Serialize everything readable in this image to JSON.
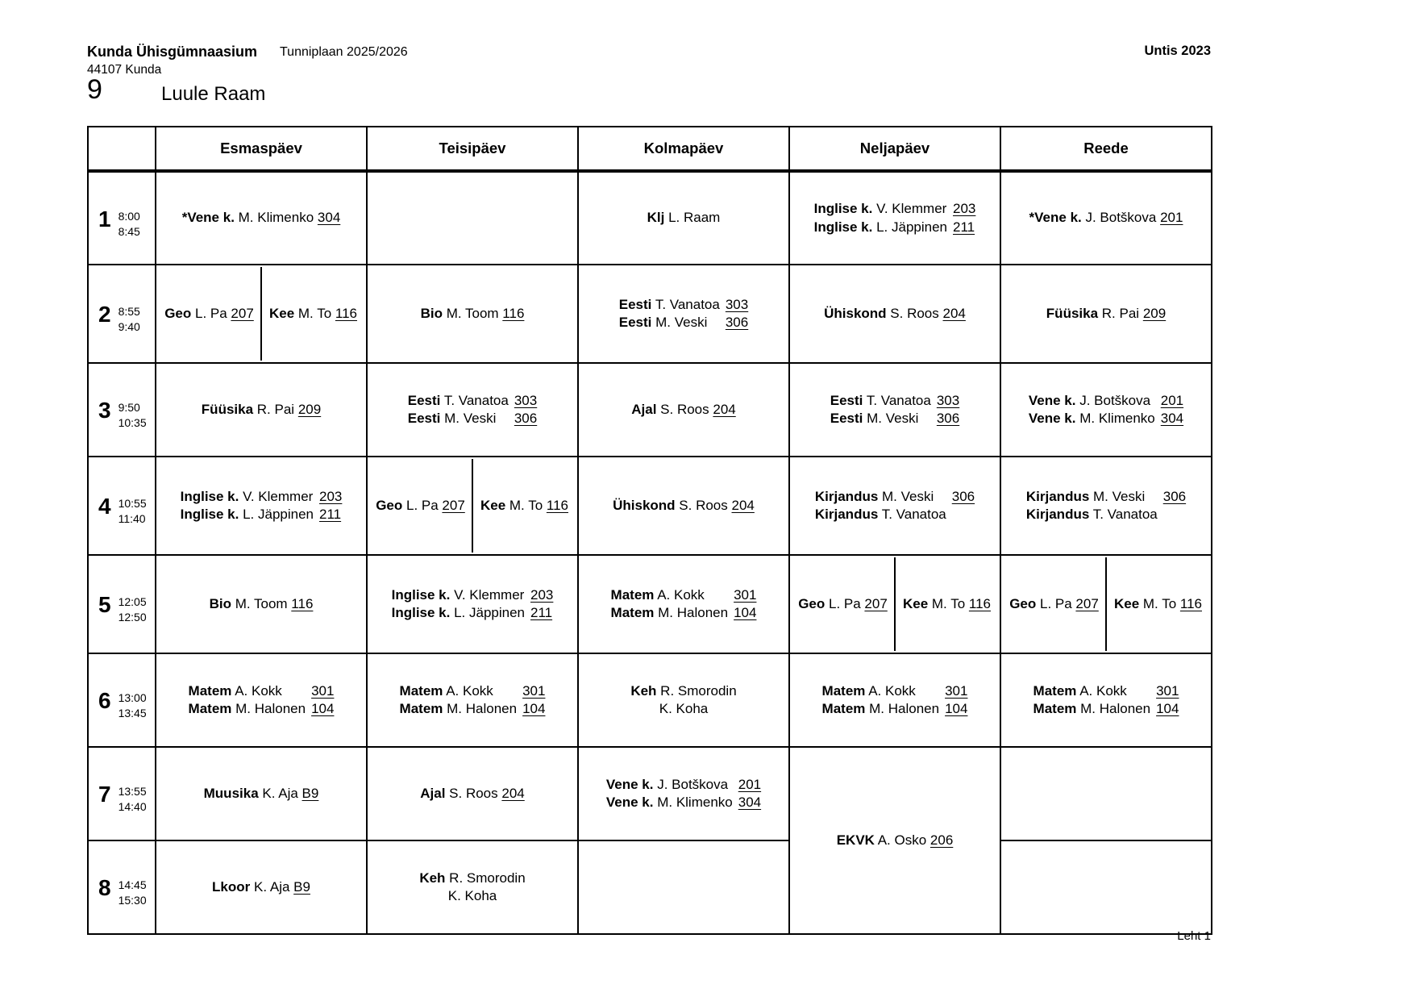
{
  "page": {
    "school": "Kunda Ühisgümnaasium",
    "address": "44107 Kunda",
    "plan_title": "Tunniplaan 2025/2026",
    "app_version": "Untis 2023",
    "class_label": "9",
    "class_name": "Luule Raam",
    "page_footer": "Leht 1"
  },
  "timetable": {
    "days": [
      "Esmaspäev",
      "Teisipäev",
      "Kolmapäev",
      "Neljapäev",
      "Reede"
    ],
    "periods": [
      {
        "num": "1",
        "start": "8:00",
        "end": "8:45"
      },
      {
        "num": "2",
        "start": "8:55",
        "end": "9:40"
      },
      {
        "num": "3",
        "start": "9:50",
        "end": "10:35"
      },
      {
        "num": "4",
        "start": "10:55",
        "end": "11:40"
      },
      {
        "num": "5",
        "start": "12:05",
        "end": "12:50"
      },
      {
        "num": "6",
        "start": "13:00",
        "end": "13:45"
      },
      {
        "num": "7",
        "start": "13:55",
        "end": "14:40"
      },
      {
        "num": "8",
        "start": "14:45",
        "end": "15:30"
      }
    ],
    "rows": [
      [
        {
          "kind": "lessons",
          "lines": [
            [
              "*Vene k.",
              "M. Klimenko",
              "304"
            ]
          ]
        },
        {
          "kind": "empty"
        },
        {
          "kind": "lessons",
          "lines": [
            [
              "Klj",
              "L. Raam",
              ""
            ]
          ]
        },
        {
          "kind": "lessons",
          "lines": [
            [
              "Inglise k.",
              "V. Klemmer",
              "203"
            ],
            [
              "Inglise k.",
              "L. Jäppinen",
              "211"
            ]
          ]
        },
        {
          "kind": "lessons",
          "lines": [
            [
              "*Vene k.",
              "J. Botškova",
              "201"
            ]
          ]
        }
      ],
      [
        {
          "kind": "split",
          "parts": [
            [
              [
                "Geo",
                "L. Pa",
                "207"
              ]
            ],
            [
              [
                "Kee",
                "M. To",
                "116"
              ]
            ]
          ]
        },
        {
          "kind": "lessons",
          "lines": [
            [
              "Bio",
              "M. Toom",
              "116"
            ]
          ]
        },
        {
          "kind": "lessons",
          "lines": [
            [
              "Eesti",
              "T. Vanatoa",
              "303"
            ],
            [
              "Eesti",
              "M. Veski",
              "306"
            ]
          ]
        },
        {
          "kind": "lessons",
          "lines": [
            [
              "Ühiskond",
              "S. Roos",
              "204"
            ]
          ]
        },
        {
          "kind": "lessons",
          "lines": [
            [
              "Füüsika",
              "R. Pai",
              "209"
            ]
          ]
        }
      ],
      [
        {
          "kind": "lessons",
          "lines": [
            [
              "Füüsika",
              "R. Pai",
              "209"
            ]
          ]
        },
        {
          "kind": "lessons",
          "lines": [
            [
              "Eesti",
              "T. Vanatoa",
              "303"
            ],
            [
              "Eesti",
              "M. Veski",
              "306"
            ]
          ]
        },
        {
          "kind": "lessons",
          "lines": [
            [
              "Ajal",
              "S. Roos",
              "204"
            ]
          ]
        },
        {
          "kind": "lessons",
          "lines": [
            [
              "Eesti",
              "T. Vanatoa",
              "303"
            ],
            [
              "Eesti",
              "M. Veski",
              "306"
            ]
          ]
        },
        {
          "kind": "lessons",
          "lines": [
            [
              "Vene k.",
              "J. Botškova",
              "201"
            ],
            [
              "Vene k.",
              "M. Klimenko",
              "304"
            ]
          ]
        }
      ],
      [
        {
          "kind": "lessons",
          "lines": [
            [
              "Inglise k.",
              "V. Klemmer",
              "203"
            ],
            [
              "Inglise k.",
              "L. Jäppinen",
              "211"
            ]
          ]
        },
        {
          "kind": "split",
          "parts": [
            [
              [
                "Geo",
                "L. Pa",
                "207"
              ]
            ],
            [
              [
                "Kee",
                "M. To",
                "116"
              ]
            ]
          ]
        },
        {
          "kind": "lessons",
          "lines": [
            [
              "Ühiskond",
              "S. Roos",
              "204"
            ]
          ]
        },
        {
          "kind": "lessons",
          "lines": [
            [
              "Kirjandus",
              "M. Veski",
              "306"
            ],
            [
              "Kirjandus",
              "T. Vanatoa",
              ""
            ]
          ]
        },
        {
          "kind": "lessons",
          "lines": [
            [
              "Kirjandus",
              "M. Veski",
              "306"
            ],
            [
              "Kirjandus",
              "T. Vanatoa",
              ""
            ]
          ]
        }
      ],
      [
        {
          "kind": "lessons",
          "lines": [
            [
              "Bio",
              "M. Toom",
              "116"
            ]
          ]
        },
        {
          "kind": "lessons",
          "lines": [
            [
              "Inglise k.",
              "V. Klemmer",
              "203"
            ],
            [
              "Inglise k.",
              "L. Jäppinen",
              "211"
            ]
          ]
        },
        {
          "kind": "lessons",
          "lines": [
            [
              "Matem",
              "A. Kokk",
              "301"
            ],
            [
              "Matem",
              "M. Halonen",
              "104"
            ]
          ]
        },
        {
          "kind": "split",
          "parts": [
            [
              [
                "Geo",
                "L. Pa",
                "207"
              ]
            ],
            [
              [
                "Kee",
                "M. To",
                "116"
              ]
            ]
          ]
        },
        {
          "kind": "split",
          "parts": [
            [
              [
                "Geo",
                "L. Pa",
                "207"
              ]
            ],
            [
              [
                "Kee",
                "M. To",
                "116"
              ]
            ]
          ]
        }
      ],
      [
        {
          "kind": "lessons",
          "lines": [
            [
              "Matem",
              "A. Kokk",
              "301"
            ],
            [
              "Matem",
              "M. Halonen",
              "104"
            ]
          ]
        },
        {
          "kind": "lessons",
          "lines": [
            [
              "Matem",
              "A. Kokk",
              "301"
            ],
            [
              "Matem",
              "M. Halonen",
              "104"
            ]
          ]
        },
        {
          "kind": "lessons",
          "lines": [
            [
              "Keh",
              "R. Smorodin",
              ""
            ],
            [
              "",
              "K. Koha",
              ""
            ]
          ]
        },
        {
          "kind": "lessons",
          "lines": [
            [
              "Matem",
              "A. Kokk",
              "301"
            ],
            [
              "Matem",
              "M. Halonen",
              "104"
            ]
          ]
        },
        {
          "kind": "lessons",
          "lines": [
            [
              "Matem",
              "A. Kokk",
              "301"
            ],
            [
              "Matem",
              "M. Halonen",
              "104"
            ]
          ]
        }
      ],
      [
        {
          "kind": "lessons",
          "lines": [
            [
              "Muusika",
              "K. Aja",
              "B9"
            ]
          ]
        },
        {
          "kind": "lessons",
          "lines": [
            [
              "Ajal",
              "S. Roos",
              "204"
            ]
          ]
        },
        {
          "kind": "lessons",
          "lines": [
            [
              "Vene k.",
              "J. Botškova",
              "201"
            ],
            [
              "Vene k.",
              "M. Klimenko",
              "304"
            ]
          ]
        },
        {
          "kind": "lessons",
          "rowspan": 2,
          "lines": [
            [
              "EKVK",
              "A. Osko",
              "206"
            ]
          ]
        },
        {
          "kind": "empty"
        }
      ],
      [
        {
          "kind": "lessons",
          "lines": [
            [
              "Lkoor",
              "K. Aja",
              "B9"
            ]
          ]
        },
        {
          "kind": "lessons",
          "lines": [
            [
              "Keh",
              "R. Smorodin",
              ""
            ],
            [
              "",
              "K. Koha",
              ""
            ]
          ]
        },
        {
          "kind": "empty"
        },
        {
          "kind": "skip"
        },
        {
          "kind": "empty"
        }
      ]
    ]
  }
}
